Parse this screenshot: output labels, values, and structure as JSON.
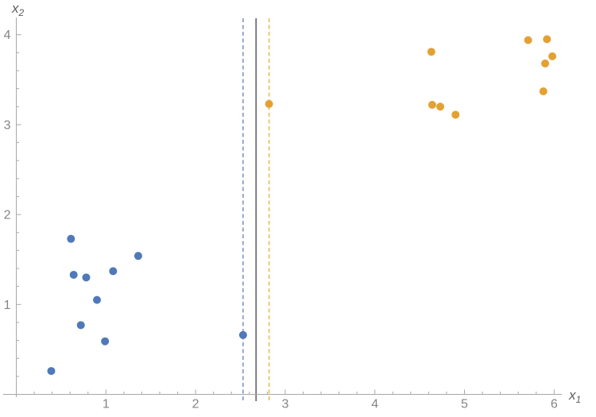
{
  "figure": {
    "background": "#ffffff",
    "description": "Scatter plot of two point classes with a solid vertical decision boundary flanked by two dashed margin lines"
  },
  "chart_data": {
    "type": "scatter",
    "title": "",
    "xlabel": "x_1",
    "ylabel": "x_2",
    "xlabel_base": "x",
    "xlabel_sub": "1",
    "ylabel_base": "x",
    "ylabel_sub": "2",
    "xlim": [
      0,
      6.25
    ],
    "ylim": [
      0,
      4.2
    ],
    "x_major_ticks": [
      1,
      2,
      3,
      4,
      5,
      6
    ],
    "y_major_ticks": [
      1,
      2,
      3,
      4
    ],
    "minor_tick_step": 0.2,
    "grid": false,
    "legend_position": "none",
    "axis_color": "#a8a8a8",
    "tick_label_color": "#848484",
    "axis_label_color": "#5d5d5d",
    "point_radius": 5,
    "series": [
      {
        "name": "blue-class",
        "color": "#4f79b8",
        "points": [
          [
            0.61,
            1.73
          ],
          [
            1.36,
            1.54
          ],
          [
            0.64,
            1.33
          ],
          [
            0.78,
            1.3
          ],
          [
            1.08,
            1.37
          ],
          [
            0.9,
            1.05
          ],
          [
            0.72,
            0.77
          ],
          [
            0.99,
            0.59
          ],
          [
            0.39,
            0.26
          ],
          [
            2.53,
            0.66
          ]
        ]
      },
      {
        "name": "orange-class",
        "color": "#e3a134",
        "points": [
          [
            2.82,
            3.23
          ],
          [
            4.63,
            3.81
          ],
          [
            4.64,
            3.22
          ],
          [
            4.73,
            3.2
          ],
          [
            4.9,
            3.11
          ],
          [
            5.71,
            3.94
          ],
          [
            5.92,
            3.95
          ],
          [
            5.98,
            3.76
          ],
          [
            5.9,
            3.68
          ],
          [
            5.88,
            3.37
          ]
        ]
      }
    ],
    "vertical_lines": [
      {
        "name": "blue-margin",
        "x": 2.53,
        "style": "dashed",
        "color": "#7b97c9",
        "width": 1.6
      },
      {
        "name": "decision-boundary",
        "x": 2.675,
        "style": "solid",
        "color": "#6e6e6e",
        "width": 1.8
      },
      {
        "name": "orange-margin",
        "x": 2.82,
        "style": "dashed",
        "color": "#e9bc55",
        "width": 1.6
      }
    ]
  }
}
